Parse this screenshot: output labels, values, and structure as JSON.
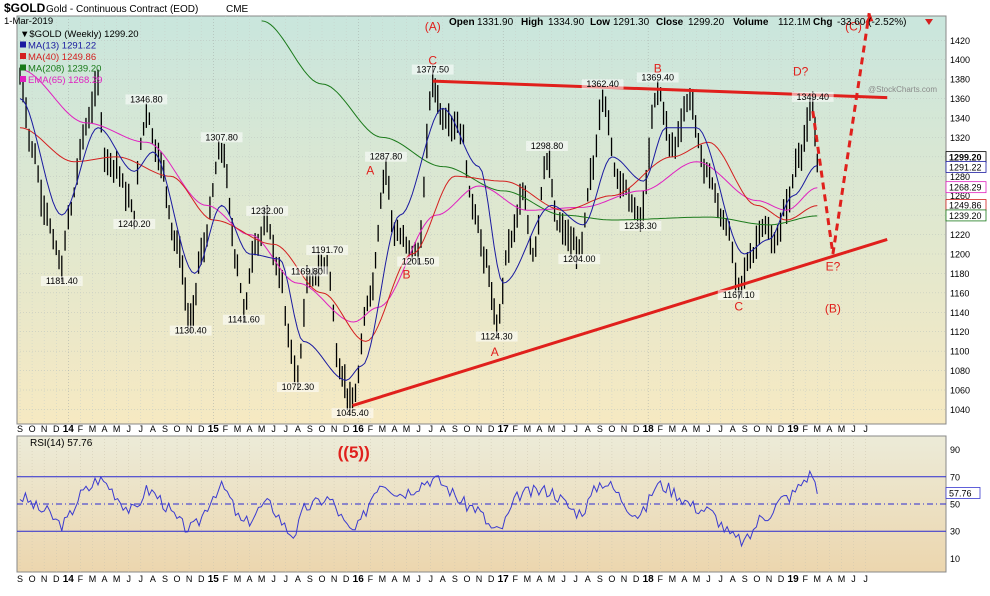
{
  "header": {
    "symbol": "$GOLD",
    "name": "Gold - Continuous Contract (EOD)",
    "exchange": "CME",
    "date": "1-Mar-2019",
    "quote": {
      "open_label": "Open",
      "open": "1331.90",
      "high_label": "High",
      "high": "1334.90",
      "low_label": "Low",
      "low": "1291.30",
      "close_label": "Close",
      "close": "1299.20",
      "volume_label": "Volume",
      "volume": "112.1M",
      "chg_label": "Chg",
      "chg": "-33.60 (-2.52%)",
      "trend_icon": "down-arrow-icon"
    },
    "watermark": "@StockCharts.com"
  },
  "legend": [
    {
      "label": "▼$GOLD (Weekly) 1299.20",
      "color": "#000000"
    },
    {
      "label": "MA(13) 1291.22",
      "color": "#1a1aa0"
    },
    {
      "label": "MA(40) 1249.86",
      "color": "#d42020"
    },
    {
      "label": "MA(208) 1239.20",
      "color": "#1a7a1a"
    },
    {
      "label": "EMA(65) 1268.29",
      "color": "#e020c0"
    }
  ],
  "rsi_legend": "RSI(14) 57.76",
  "colors": {
    "price_bg_top": "#c9e6dd",
    "price_bg_bottom": "#f6e9c2",
    "rsi_bg_top": "#ecebd8",
    "rsi_bg_bottom": "#ecd6ae",
    "annotation": "#e0201c",
    "price": "#000000",
    "ma13": "#1a1aa0",
    "ma40": "#d42020",
    "ma208": "#1a7a1a",
    "ema65": "#e020c0",
    "rsi_line": "#3a3ad0",
    "rsi_band": "#2a2ad0"
  },
  "chart_data": {
    "type": "line",
    "frequency": "weekly",
    "ylim": [
      1025,
      1445
    ],
    "yticks": [
      1040,
      1060,
      1080,
      1100,
      1120,
      1140,
      1160,
      1180,
      1200,
      1220,
      1240,
      1260,
      1280,
      1300,
      1320,
      1340,
      1360,
      1380,
      1400,
      1420
    ],
    "x_ticks": [
      "S",
      "O",
      "N",
      "D",
      "14",
      "F",
      "M",
      "A",
      "M",
      "J",
      "J",
      "A",
      "S",
      "O",
      "N",
      "D",
      "15",
      "F",
      "M",
      "A",
      "M",
      "J",
      "J",
      "A",
      "S",
      "O",
      "N",
      "D",
      "16",
      "F",
      "M",
      "A",
      "M",
      "J",
      "J",
      "A",
      "S",
      "O",
      "N",
      "D",
      "17",
      "F",
      "M",
      "A",
      "M",
      "J",
      "J",
      "A",
      "S",
      "O",
      "N",
      "D",
      "18",
      "F",
      "M",
      "A",
      "M",
      "J",
      "J",
      "A",
      "S",
      "O",
      "N",
      "D",
      "19",
      "F",
      "M",
      "A",
      "M",
      "J",
      "J"
    ],
    "x_bold_ticks": [
      "14",
      "15",
      "16",
      "17",
      "18",
      "19"
    ],
    "price_series_key": [
      [
        "2013-09-01",
        1380
      ],
      [
        "2013-10-01",
        1310
      ],
      [
        "2013-11-01",
        1250
      ],
      [
        "2013-12-01",
        1205
      ],
      [
        "2013-12-15",
        1181.4
      ],
      [
        "2014-01-01",
        1240
      ],
      [
        "2014-02-15",
        1330
      ],
      [
        "2014-03-15",
        1375
      ],
      [
        "2014-04-01",
        1300
      ],
      [
        "2014-05-01",
        1290
      ],
      [
        "2014-06-01",
        1255
      ],
      [
        "2014-06-15",
        1240.2
      ],
      [
        "2014-07-01",
        1315
      ],
      [
        "2014-07-15",
        1346.8
      ],
      [
        "2014-08-15",
        1300
      ],
      [
        "2014-10-01",
        1210
      ],
      [
        "2014-11-05",
        1130.4
      ],
      [
        "2014-12-01",
        1200
      ],
      [
        "2015-01-22",
        1307.8
      ],
      [
        "2015-03-01",
        1190
      ],
      [
        "2015-03-17",
        1141.6
      ],
      [
        "2015-04-15",
        1210
      ],
      [
        "2015-05-15",
        1232
      ],
      [
        "2015-06-15",
        1180
      ],
      [
        "2015-07-15",
        1100
      ],
      [
        "2015-08-01",
        1072.3
      ],
      [
        "2015-08-24",
        1169.8
      ],
      [
        "2015-10-14",
        1191.7
      ],
      [
        "2015-11-15",
        1080
      ],
      [
        "2015-12-17",
        1045.4
      ],
      [
        "2016-02-01",
        1160
      ],
      [
        "2016-03-10",
        1287.8
      ],
      [
        "2016-04-01",
        1220
      ],
      [
        "2016-05-30",
        1201.5
      ],
      [
        "2016-07-06",
        1377.5
      ],
      [
        "2016-08-01",
        1340
      ],
      [
        "2016-09-15",
        1330
      ],
      [
        "2016-10-15",
        1250
      ],
      [
        "2016-11-20",
        1190
      ],
      [
        "2016-12-15",
        1124.3
      ],
      [
        "2017-01-15",
        1210
      ],
      [
        "2017-02-20",
        1260
      ],
      [
        "2017-03-15",
        1200
      ],
      [
        "2017-04-20",
        1298.8
      ],
      [
        "2017-05-15",
        1230
      ],
      [
        "2017-07-10",
        1204
      ],
      [
        "2017-08-15",
        1290
      ],
      [
        "2017-09-08",
        1362.4
      ],
      [
        "2017-10-15",
        1280
      ],
      [
        "2017-12-12",
        1238.3
      ],
      [
        "2018-01-25",
        1369.4
      ],
      [
        "2018-03-01",
        1310
      ],
      [
        "2018-04-15",
        1360
      ],
      [
        "2018-05-20",
        1290
      ],
      [
        "2018-07-15",
        1230
      ],
      [
        "2018-08-16",
        1167.1
      ],
      [
        "2018-09-15",
        1195
      ],
      [
        "2018-10-15",
        1230
      ],
      [
        "2018-11-15",
        1210
      ],
      [
        "2018-12-15",
        1250
      ],
      [
        "2019-01-15",
        1300
      ],
      [
        "2019-02-20",
        1349.4
      ],
      [
        "2019-03-01",
        1299.2
      ]
    ],
    "ma13_key": [
      [
        "2013-09-01",
        1360
      ],
      [
        "2013-12-15",
        1240
      ],
      [
        "2014-03-15",
        1330
      ],
      [
        "2014-06-15",
        1285
      ],
      [
        "2014-08-01",
        1305
      ],
      [
        "2014-11-15",
        1180
      ],
      [
        "2015-01-22",
        1250
      ],
      [
        "2015-04-01",
        1200
      ],
      [
        "2015-06-15",
        1195
      ],
      [
        "2015-08-15",
        1110
      ],
      [
        "2015-12-01",
        1070
      ],
      [
        "2016-01-10",
        1085
      ],
      [
        "2016-04-15",
        1240
      ],
      [
        "2016-08-01",
        1350
      ],
      [
        "2016-11-01",
        1290
      ],
      [
        "2017-01-01",
        1170
      ],
      [
        "2017-05-01",
        1250
      ],
      [
        "2017-07-20",
        1230
      ],
      [
        "2017-10-01",
        1300
      ],
      [
        "2017-12-20",
        1275
      ],
      [
        "2018-02-15",
        1330
      ],
      [
        "2018-05-01",
        1330
      ],
      [
        "2018-08-30",
        1200
      ],
      [
        "2018-11-01",
        1215
      ],
      [
        "2019-01-01",
        1260
      ],
      [
        "2019-03-01",
        1291.22
      ]
    ],
    "ma40_key": [
      [
        "2013-09-01",
        1330
      ],
      [
        "2014-01-15",
        1295
      ],
      [
        "2014-05-01",
        1300
      ],
      [
        "2014-09-15",
        1280
      ],
      [
        "2015-01-01",
        1235
      ],
      [
        "2015-06-01",
        1210
      ],
      [
        "2015-10-01",
        1160
      ],
      [
        "2016-01-20",
        1110
      ],
      [
        "2016-05-15",
        1200
      ],
      [
        "2016-09-01",
        1280
      ],
      [
        "2017-01-01",
        1275
      ],
      [
        "2017-06-01",
        1245
      ],
      [
        "2017-10-01",
        1260
      ],
      [
        "2018-03-01",
        1300
      ],
      [
        "2018-06-01",
        1315
      ],
      [
        "2018-10-01",
        1250
      ],
      [
        "2018-12-15",
        1235
      ],
      [
        "2019-03-01",
        1249.86
      ]
    ],
    "ma208_key": [
      [
        "2015-05-01",
        1440
      ],
      [
        "2015-10-01",
        1375
      ],
      [
        "2016-03-01",
        1320
      ],
      [
        "2016-08-01",
        1290
      ],
      [
        "2017-01-01",
        1265
      ],
      [
        "2017-06-01",
        1240
      ],
      [
        "2017-10-01",
        1235
      ],
      [
        "2018-06-01",
        1238
      ],
      [
        "2018-11-01",
        1230
      ],
      [
        "2019-03-01",
        1239.2
      ]
    ],
    "ema65_key": [
      [
        "2013-09-01",
        1390
      ],
      [
        "2014-02-15",
        1335
      ],
      [
        "2014-07-15",
        1315
      ],
      [
        "2014-12-15",
        1250
      ],
      [
        "2015-04-01",
        1220
      ],
      [
        "2015-08-01",
        1170
      ],
      [
        "2015-12-20",
        1130
      ],
      [
        "2016-02-20",
        1145
      ],
      [
        "2016-07-15",
        1240
      ],
      [
        "2016-11-01",
        1270
      ],
      [
        "2017-03-01",
        1245
      ],
      [
        "2017-07-15",
        1248
      ],
      [
        "2017-12-15",
        1265
      ],
      [
        "2018-05-01",
        1295
      ],
      [
        "2018-10-01",
        1255
      ],
      [
        "2018-12-15",
        1245
      ],
      [
        "2019-03-01",
        1268.29
      ]
    ],
    "right_axis_labels": [
      "1299.20",
      "1291.22",
      "1268.29",
      "1249.86",
      "1239.20"
    ],
    "price_labels": [
      {
        "text": "1181.40",
        "date": "2013-12-15",
        "y": 1181.4,
        "pos": "below"
      },
      {
        "text": "1346.80",
        "date": "2014-07-15",
        "y": 1346.8,
        "pos": "above"
      },
      {
        "text": "1240.20",
        "date": "2014-06-15",
        "y": 1240.2,
        "pos": "below"
      },
      {
        "text": "1130.40",
        "date": "2014-11-05",
        "y": 1130.4,
        "pos": "below"
      },
      {
        "text": "1307.80",
        "date": "2015-01-22",
        "y": 1307.8,
        "pos": "above"
      },
      {
        "text": "1141.60",
        "date": "2015-03-17",
        "y": 1141.6,
        "pos": "below"
      },
      {
        "text": "1232.00",
        "date": "2015-05-15",
        "y": 1232,
        "pos": "above"
      },
      {
        "text": "1072.30",
        "date": "2015-08-01",
        "y": 1072.3,
        "pos": "below"
      },
      {
        "text": "1169.80",
        "date": "2015-08-24",
        "y": 1169.8,
        "pos": "above"
      },
      {
        "text": "1191.70",
        "date": "2015-10-14",
        "y": 1191.7,
        "pos": "above"
      },
      {
        "text": "1045.40",
        "date": "2015-12-17",
        "y": 1045.4,
        "pos": "below"
      },
      {
        "text": "1287.80",
        "date": "2016-03-10",
        "y": 1287.8,
        "pos": "above"
      },
      {
        "text": "1201.50",
        "date": "2016-05-30",
        "y": 1201.5,
        "pos": "below"
      },
      {
        "text": "1377.50",
        "date": "2016-07-06",
        "y": 1377.5,
        "pos": "above"
      },
      {
        "text": "1124.30",
        "date": "2016-12-15",
        "y": 1124.3,
        "pos": "below"
      },
      {
        "text": "1298.80",
        "date": "2017-04-20",
        "y": 1298.8,
        "pos": "above"
      },
      {
        "text": "1204.00",
        "date": "2017-07-10",
        "y": 1204,
        "pos": "below"
      },
      {
        "text": "1362.40",
        "date": "2017-09-08",
        "y": 1362.4,
        "pos": "above"
      },
      {
        "text": "1238.30",
        "date": "2017-12-12",
        "y": 1238.3,
        "pos": "below"
      },
      {
        "text": "1369.40",
        "date": "2018-01-25",
        "y": 1369.4,
        "pos": "above"
      },
      {
        "text": "1167.10",
        "date": "2018-08-16",
        "y": 1167.1,
        "pos": "below"
      },
      {
        "text": "1349.40",
        "date": "2019-02-20",
        "y": 1349.4,
        "pos": "above"
      }
    ],
    "wave_labels": [
      {
        "text": "(A)",
        "date": "2016-07-06",
        "y": 1430
      },
      {
        "text": "C",
        "date": "2016-07-06",
        "y": 1395
      },
      {
        "text": "A",
        "date": "2016-02-01",
        "y": 1282
      },
      {
        "text": "B",
        "date": "2016-05-01",
        "y": 1175
      },
      {
        "text": "A",
        "date": "2016-12-10",
        "y": 1095
      },
      {
        "text": "B",
        "date": "2018-01-25",
        "y": 1387
      },
      {
        "text": "C",
        "date": "2018-08-16",
        "y": 1142
      },
      {
        "text": "D?",
        "date": "2019-01-20",
        "y": 1384
      },
      {
        "text": "E?",
        "date": "2019-04-10",
        "y": 1183
      },
      {
        "text": "(B)",
        "date": "2019-04-10",
        "y": 1140
      },
      {
        "text": "(C)",
        "date": "2019-06-01",
        "y": 1430
      },
      {
        "text": "((5))",
        "date": "2015-12-20",
        "y": 0
      }
    ],
    "trendlines": [
      {
        "name": "upper-trendline",
        "from": [
          "2016-07-06",
          1378
        ],
        "to": [
          "2019-08-25",
          1361
        ]
      },
      {
        "name": "lower-trendline",
        "from": [
          "2015-12-17",
          1044
        ],
        "to": [
          "2019-08-25",
          1215
        ]
      }
    ],
    "projection": [
      [
        "2019-02-20",
        1347
      ],
      [
        "2019-04-10",
        1200
      ],
      [
        "2019-07-10",
        1448
      ]
    ],
    "rsi": {
      "ylim": [
        0,
        100
      ],
      "yticks": [
        10,
        30,
        50,
        70,
        90
      ],
      "overbought": 70,
      "oversold": 30,
      "mid": 50,
      "current": 57.76,
      "key": [
        [
          "2013-09-01",
          55
        ],
        [
          "2013-11-01",
          45
        ],
        [
          "2013-12-15",
          35
        ],
        [
          "2014-02-15",
          60
        ],
        [
          "2014-03-15",
          68
        ],
        [
          "2014-06-15",
          45
        ],
        [
          "2014-07-15",
          60
        ],
        [
          "2014-11-05",
          32
        ],
        [
          "2015-01-22",
          62
        ],
        [
          "2015-03-17",
          36
        ],
        [
          "2015-05-15",
          50
        ],
        [
          "2015-07-20",
          28
        ],
        [
          "2015-08-24",
          48
        ],
        [
          "2015-10-14",
          54
        ],
        [
          "2015-12-17",
          30
        ],
        [
          "2016-03-01",
          66
        ],
        [
          "2016-04-15",
          58
        ],
        [
          "2016-07-06",
          68
        ],
        [
          "2016-10-15",
          48
        ],
        [
          "2016-12-15",
          30
        ],
        [
          "2017-02-20",
          58
        ],
        [
          "2017-04-20",
          60
        ],
        [
          "2017-07-10",
          44
        ],
        [
          "2017-09-08",
          66
        ],
        [
          "2017-12-12",
          42
        ],
        [
          "2018-01-25",
          64
        ],
        [
          "2018-05-20",
          46
        ],
        [
          "2018-08-16",
          24
        ],
        [
          "2018-08-30",
          22
        ],
        [
          "2018-10-15",
          40
        ],
        [
          "2018-12-15",
          55
        ],
        [
          "2019-02-20",
          72
        ],
        [
          "2019-03-01",
          57.76
        ]
      ]
    }
  }
}
